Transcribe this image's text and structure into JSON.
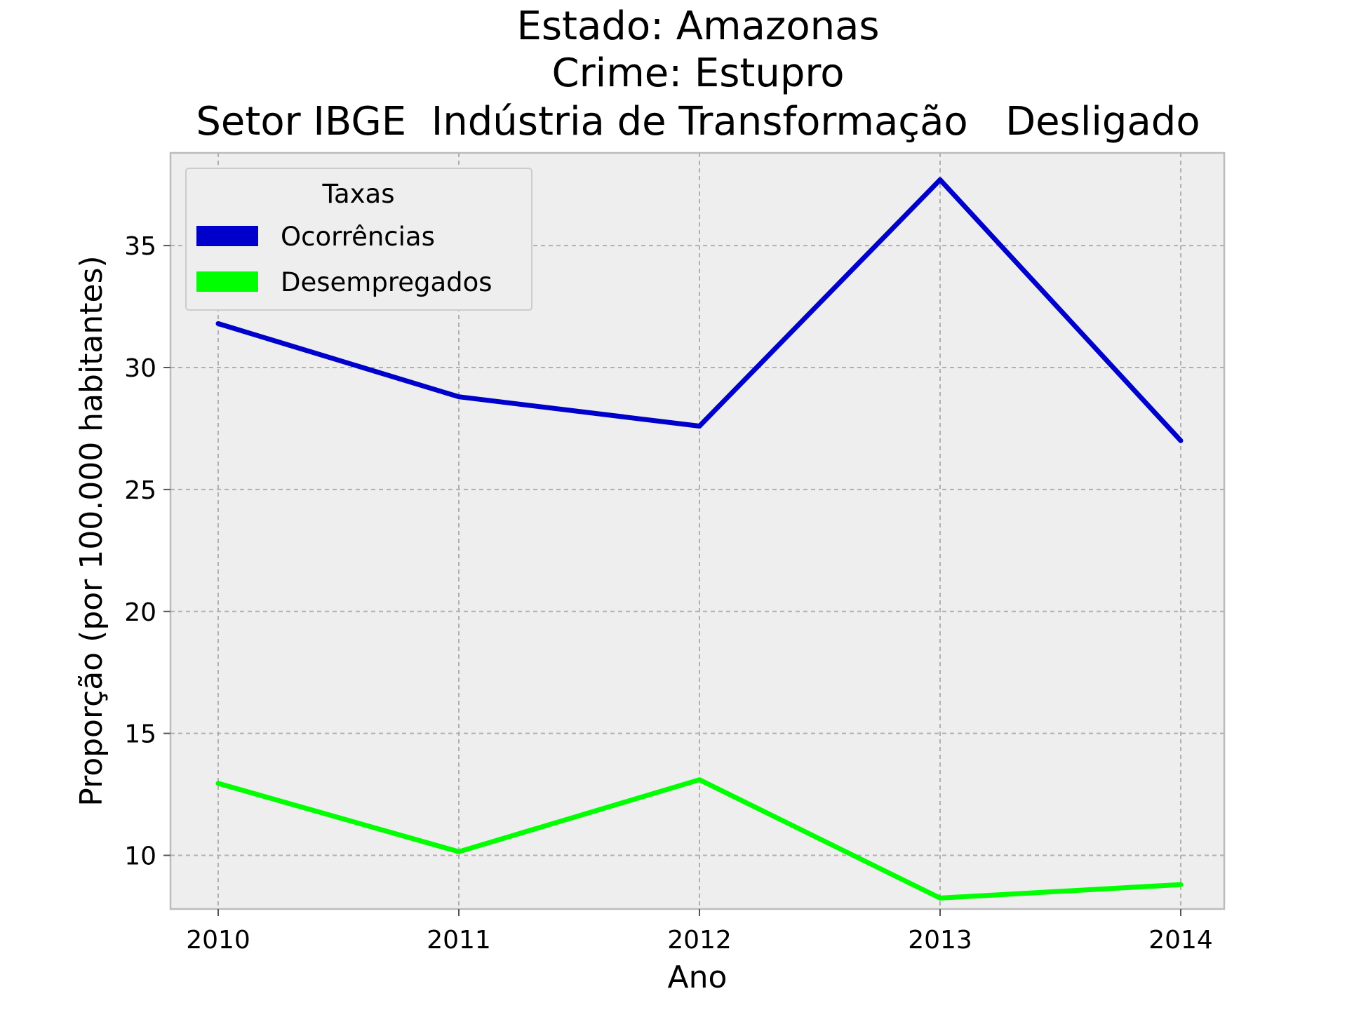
{
  "chart_data": {
    "type": "line",
    "title": [
      "Estado: Amazonas",
      "Crime: Estupro",
      "Setor IBGE  Indústria de Transformação   Desligado"
    ],
    "xlabel": "Ano",
    "ylabel": "Proporção (por 100.000 habitantes)",
    "x": [
      "2010",
      "2011",
      "2012",
      "2013",
      "2014"
    ],
    "yticks": [
      "10",
      "15",
      "20",
      "25",
      "30",
      "35"
    ],
    "ylim": [
      7.8,
      38.8
    ],
    "grid": true,
    "legend": {
      "title": "Taxas",
      "placement": "top-left"
    },
    "series": [
      {
        "name": "Ocorrências",
        "color": "#0000cc",
        "values": [
          31.8,
          28.8,
          27.6,
          37.7,
          27.0
        ]
      },
      {
        "name": "Desempregados",
        "color": "#00ff00",
        "values": [
          12.95,
          10.15,
          13.1,
          8.25,
          8.8
        ]
      }
    ]
  }
}
